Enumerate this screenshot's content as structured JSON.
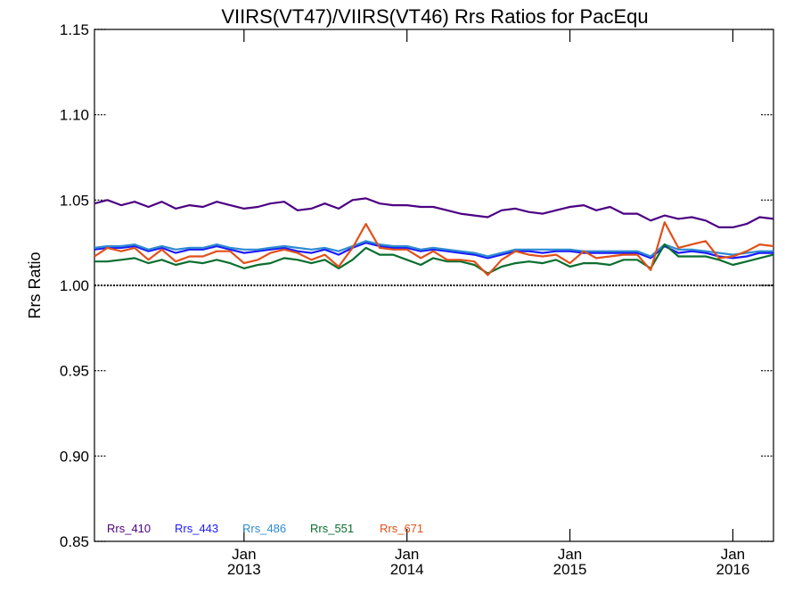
{
  "chart_data": {
    "type": "line",
    "title": "VIIRS(VT47)/VIIRS(VT46)  Rrs Ratios for PacEqu",
    "xlabel": "",
    "ylabel": "Rrs Ratio",
    "xlim": [
      "2012-02-01",
      "2016-04-01"
    ],
    "ylim": [
      0.85,
      1.15
    ],
    "y_ticks": [
      0.85,
      0.9,
      0.95,
      1.0,
      1.05,
      1.1,
      1.15
    ],
    "y_tick_labels": [
      "0.85",
      "0.90",
      "0.95",
      "1.00",
      "1.05",
      "1.10",
      "1.15"
    ],
    "x_ticks": [
      {
        "date": "2013-01-01",
        "month": "Jan",
        "year": "2013"
      },
      {
        "date": "2014-01-01",
        "month": "Jan",
        "year": "2014"
      },
      {
        "date": "2015-01-01",
        "month": "Jan",
        "year": "2015"
      },
      {
        "date": "2016-01-01",
        "month": "Jan",
        "year": "2016"
      }
    ],
    "reference_line": 1.0,
    "grid": false,
    "legend_position": "bottom-left",
    "series": [
      {
        "name": "Rrs_410",
        "color": "#4b0082",
        "points": [
          [
            "2012-02-01",
            1.048
          ],
          [
            "2012-03-01",
            1.05
          ],
          [
            "2012-04-01",
            1.047
          ],
          [
            "2012-05-01",
            1.049
          ],
          [
            "2012-06-01",
            1.046
          ],
          [
            "2012-07-01",
            1.049
          ],
          [
            "2012-08-01",
            1.045
          ],
          [
            "2012-09-01",
            1.047
          ],
          [
            "2012-10-01",
            1.046
          ],
          [
            "2012-11-01",
            1.049
          ],
          [
            "2012-12-01",
            1.047
          ],
          [
            "2013-01-01",
            1.045
          ],
          [
            "2013-02-01",
            1.046
          ],
          [
            "2013-03-01",
            1.048
          ],
          [
            "2013-04-01",
            1.049
          ],
          [
            "2013-05-01",
            1.044
          ],
          [
            "2013-06-01",
            1.045
          ],
          [
            "2013-07-01",
            1.048
          ],
          [
            "2013-08-01",
            1.045
          ],
          [
            "2013-09-01",
            1.05
          ],
          [
            "2013-10-01",
            1.051
          ],
          [
            "2013-11-01",
            1.048
          ],
          [
            "2013-12-01",
            1.047
          ],
          [
            "2014-01-01",
            1.047
          ],
          [
            "2014-02-01",
            1.046
          ],
          [
            "2014-03-01",
            1.046
          ],
          [
            "2014-04-01",
            1.044
          ],
          [
            "2014-05-01",
            1.042
          ],
          [
            "2014-06-01",
            1.041
          ],
          [
            "2014-07-01",
            1.04
          ],
          [
            "2014-08-01",
            1.044
          ],
          [
            "2014-09-01",
            1.045
          ],
          [
            "2014-10-01",
            1.043
          ],
          [
            "2014-11-01",
            1.042
          ],
          [
            "2014-12-01",
            1.044
          ],
          [
            "2015-01-01",
            1.046
          ],
          [
            "2015-02-01",
            1.047
          ],
          [
            "2015-03-01",
            1.044
          ],
          [
            "2015-04-01",
            1.046
          ],
          [
            "2015-05-01",
            1.042
          ],
          [
            "2015-06-01",
            1.042
          ],
          [
            "2015-07-01",
            1.038
          ],
          [
            "2015-08-01",
            1.041
          ],
          [
            "2015-09-01",
            1.039
          ],
          [
            "2015-10-01",
            1.04
          ],
          [
            "2015-11-01",
            1.038
          ],
          [
            "2015-12-01",
            1.034
          ],
          [
            "2016-01-01",
            1.034
          ],
          [
            "2016-02-01",
            1.036
          ],
          [
            "2016-03-01",
            1.04
          ],
          [
            "2016-04-01",
            1.039
          ]
        ]
      },
      {
        "name": "Rrs_443",
        "color": "#1a1aff",
        "points": [
          [
            "2012-02-01",
            1.021
          ],
          [
            "2012-03-01",
            1.022
          ],
          [
            "2012-04-01",
            1.022
          ],
          [
            "2012-05-01",
            1.023
          ],
          [
            "2012-06-01",
            1.02
          ],
          [
            "2012-07-01",
            1.022
          ],
          [
            "2012-08-01",
            1.019
          ],
          [
            "2012-09-01",
            1.021
          ],
          [
            "2012-10-01",
            1.021
          ],
          [
            "2012-11-01",
            1.023
          ],
          [
            "2012-12-01",
            1.021
          ],
          [
            "2013-01-01",
            1.019
          ],
          [
            "2013-02-01",
            1.02
          ],
          [
            "2013-03-01",
            1.021
          ],
          [
            "2013-04-01",
            1.022
          ],
          [
            "2013-05-01",
            1.02
          ],
          [
            "2013-06-01",
            1.019
          ],
          [
            "2013-07-01",
            1.021
          ],
          [
            "2013-08-01",
            1.018
          ],
          [
            "2013-09-01",
            1.022
          ],
          [
            "2013-10-01",
            1.025
          ],
          [
            "2013-11-01",
            1.023
          ],
          [
            "2013-12-01",
            1.022
          ],
          [
            "2014-01-01",
            1.022
          ],
          [
            "2014-02-01",
            1.02
          ],
          [
            "2014-03-01",
            1.021
          ],
          [
            "2014-04-01",
            1.02
          ],
          [
            "2014-05-01",
            1.019
          ],
          [
            "2014-06-01",
            1.018
          ],
          [
            "2014-07-01",
            1.016
          ],
          [
            "2014-08-01",
            1.018
          ],
          [
            "2014-09-01",
            1.02
          ],
          [
            "2014-10-01",
            1.02
          ],
          [
            "2014-11-01",
            1.019
          ],
          [
            "2014-12-01",
            1.02
          ],
          [
            "2015-01-01",
            1.02
          ],
          [
            "2015-02-01",
            1.019
          ],
          [
            "2015-03-01",
            1.019
          ],
          [
            "2015-04-01",
            1.019
          ],
          [
            "2015-05-01",
            1.019
          ],
          [
            "2015-06-01",
            1.019
          ],
          [
            "2015-07-01",
            1.016
          ],
          [
            "2015-08-01",
            1.023
          ],
          [
            "2015-09-01",
            1.019
          ],
          [
            "2015-10-01",
            1.02
          ],
          [
            "2015-11-01",
            1.019
          ],
          [
            "2015-12-01",
            1.017
          ],
          [
            "2016-01-01",
            1.016
          ],
          [
            "2016-02-01",
            1.017
          ],
          [
            "2016-03-01",
            1.019
          ],
          [
            "2016-04-01",
            1.019
          ]
        ]
      },
      {
        "name": "Rrs_486",
        "color": "#2e8bd1",
        "points": [
          [
            "2012-02-01",
            1.022
          ],
          [
            "2012-03-01",
            1.023
          ],
          [
            "2012-04-01",
            1.023
          ],
          [
            "2012-05-01",
            1.024
          ],
          [
            "2012-06-01",
            1.021
          ],
          [
            "2012-07-01",
            1.023
          ],
          [
            "2012-08-01",
            1.021
          ],
          [
            "2012-09-01",
            1.022
          ],
          [
            "2012-10-01",
            1.022
          ],
          [
            "2012-11-01",
            1.024
          ],
          [
            "2012-12-01",
            1.022
          ],
          [
            "2013-01-01",
            1.021
          ],
          [
            "2013-02-01",
            1.021
          ],
          [
            "2013-03-01",
            1.022
          ],
          [
            "2013-04-01",
            1.023
          ],
          [
            "2013-05-01",
            1.022
          ],
          [
            "2013-06-01",
            1.021
          ],
          [
            "2013-07-01",
            1.022
          ],
          [
            "2013-08-01",
            1.02
          ],
          [
            "2013-09-01",
            1.023
          ],
          [
            "2013-10-01",
            1.026
          ],
          [
            "2013-11-01",
            1.024
          ],
          [
            "2013-12-01",
            1.023
          ],
          [
            "2014-01-01",
            1.023
          ],
          [
            "2014-02-01",
            1.021
          ],
          [
            "2014-03-01",
            1.022
          ],
          [
            "2014-04-01",
            1.021
          ],
          [
            "2014-05-01",
            1.02
          ],
          [
            "2014-06-01",
            1.019
          ],
          [
            "2014-07-01",
            1.017
          ],
          [
            "2014-08-01",
            1.019
          ],
          [
            "2014-09-01",
            1.021
          ],
          [
            "2014-10-01",
            1.021
          ],
          [
            "2014-11-01",
            1.021
          ],
          [
            "2014-12-01",
            1.021
          ],
          [
            "2015-01-01",
            1.021
          ],
          [
            "2015-02-01",
            1.02
          ],
          [
            "2015-03-01",
            1.02
          ],
          [
            "2015-04-01",
            1.02
          ],
          [
            "2015-05-01",
            1.02
          ],
          [
            "2015-06-01",
            1.02
          ],
          [
            "2015-07-01",
            1.017
          ],
          [
            "2015-08-01",
            1.024
          ],
          [
            "2015-09-01",
            1.021
          ],
          [
            "2015-10-01",
            1.021
          ],
          [
            "2015-11-01",
            1.02
          ],
          [
            "2015-12-01",
            1.019
          ],
          [
            "2016-01-01",
            1.018
          ],
          [
            "2016-02-01",
            1.019
          ],
          [
            "2016-03-01",
            1.02
          ],
          [
            "2016-04-01",
            1.02
          ]
        ]
      },
      {
        "name": "Rrs_551",
        "color": "#0a6e2e",
        "points": [
          [
            "2012-02-01",
            1.014
          ],
          [
            "2012-03-01",
            1.014
          ],
          [
            "2012-04-01",
            1.015
          ],
          [
            "2012-05-01",
            1.016
          ],
          [
            "2012-06-01",
            1.013
          ],
          [
            "2012-07-01",
            1.015
          ],
          [
            "2012-08-01",
            1.012
          ],
          [
            "2012-09-01",
            1.014
          ],
          [
            "2012-10-01",
            1.013
          ],
          [
            "2012-11-01",
            1.015
          ],
          [
            "2012-12-01",
            1.013
          ],
          [
            "2013-01-01",
            1.01
          ],
          [
            "2013-02-01",
            1.012
          ],
          [
            "2013-03-01",
            1.013
          ],
          [
            "2013-04-01",
            1.016
          ],
          [
            "2013-05-01",
            1.015
          ],
          [
            "2013-06-01",
            1.013
          ],
          [
            "2013-07-01",
            1.015
          ],
          [
            "2013-08-01",
            1.01
          ],
          [
            "2013-09-01",
            1.015
          ],
          [
            "2013-10-01",
            1.022
          ],
          [
            "2013-11-01",
            1.018
          ],
          [
            "2013-12-01",
            1.018
          ],
          [
            "2014-01-01",
            1.015
          ],
          [
            "2014-02-01",
            1.012
          ],
          [
            "2014-03-01",
            1.016
          ],
          [
            "2014-04-01",
            1.014
          ],
          [
            "2014-05-01",
            1.014
          ],
          [
            "2014-06-01",
            1.012
          ],
          [
            "2014-07-01",
            1.007
          ],
          [
            "2014-08-01",
            1.011
          ],
          [
            "2014-09-01",
            1.013
          ],
          [
            "2014-10-01",
            1.014
          ],
          [
            "2014-11-01",
            1.013
          ],
          [
            "2014-12-01",
            1.015
          ],
          [
            "2015-01-01",
            1.011
          ],
          [
            "2015-02-01",
            1.013
          ],
          [
            "2015-03-01",
            1.013
          ],
          [
            "2015-04-01",
            1.012
          ],
          [
            "2015-05-01",
            1.015
          ],
          [
            "2015-06-01",
            1.015
          ],
          [
            "2015-07-01",
            1.01
          ],
          [
            "2015-08-01",
            1.024
          ],
          [
            "2015-09-01",
            1.017
          ],
          [
            "2015-10-01",
            1.017
          ],
          [
            "2015-11-01",
            1.017
          ],
          [
            "2015-12-01",
            1.015
          ],
          [
            "2016-01-01",
            1.012
          ],
          [
            "2016-02-01",
            1.014
          ],
          [
            "2016-03-01",
            1.016
          ],
          [
            "2016-04-01",
            1.018
          ]
        ]
      },
      {
        "name": "Rrs_671",
        "color": "#e0501a",
        "points": [
          [
            "2012-02-01",
            1.017
          ],
          [
            "2012-03-01",
            1.022
          ],
          [
            "2012-04-01",
            1.02
          ],
          [
            "2012-05-01",
            1.022
          ],
          [
            "2012-06-01",
            1.015
          ],
          [
            "2012-07-01",
            1.021
          ],
          [
            "2012-08-01",
            1.014
          ],
          [
            "2012-09-01",
            1.017
          ],
          [
            "2012-10-01",
            1.017
          ],
          [
            "2012-11-01",
            1.02
          ],
          [
            "2012-12-01",
            1.02
          ],
          [
            "2013-01-01",
            1.013
          ],
          [
            "2013-02-01",
            1.015
          ],
          [
            "2013-03-01",
            1.019
          ],
          [
            "2013-04-01",
            1.021
          ],
          [
            "2013-05-01",
            1.019
          ],
          [
            "2013-06-01",
            1.015
          ],
          [
            "2013-07-01",
            1.018
          ],
          [
            "2013-08-01",
            1.011
          ],
          [
            "2013-09-01",
            1.022
          ],
          [
            "2013-10-01",
            1.036
          ],
          [
            "2013-11-01",
            1.022
          ],
          [
            "2013-12-01",
            1.021
          ],
          [
            "2014-01-01",
            1.021
          ],
          [
            "2014-02-01",
            1.016
          ],
          [
            "2014-03-01",
            1.02
          ],
          [
            "2014-04-01",
            1.015
          ],
          [
            "2014-05-01",
            1.015
          ],
          [
            "2014-06-01",
            1.014
          ],
          [
            "2014-07-01",
            1.006
          ],
          [
            "2014-08-01",
            1.015
          ],
          [
            "2014-09-01",
            1.02
          ],
          [
            "2014-10-01",
            1.018
          ],
          [
            "2014-11-01",
            1.017
          ],
          [
            "2014-12-01",
            1.018
          ],
          [
            "2015-01-01",
            1.013
          ],
          [
            "2015-02-01",
            1.02
          ],
          [
            "2015-03-01",
            1.016
          ],
          [
            "2015-04-01",
            1.017
          ],
          [
            "2015-05-01",
            1.018
          ],
          [
            "2015-06-01",
            1.018
          ],
          [
            "2015-07-01",
            1.009
          ],
          [
            "2015-08-01",
            1.037
          ],
          [
            "2015-09-01",
            1.022
          ],
          [
            "2015-10-01",
            1.024
          ],
          [
            "2015-11-01",
            1.026
          ],
          [
            "2015-12-01",
            1.016
          ],
          [
            "2016-01-01",
            1.017
          ],
          [
            "2016-02-01",
            1.02
          ],
          [
            "2016-03-01",
            1.024
          ],
          [
            "2016-04-01",
            1.023
          ]
        ]
      }
    ]
  }
}
